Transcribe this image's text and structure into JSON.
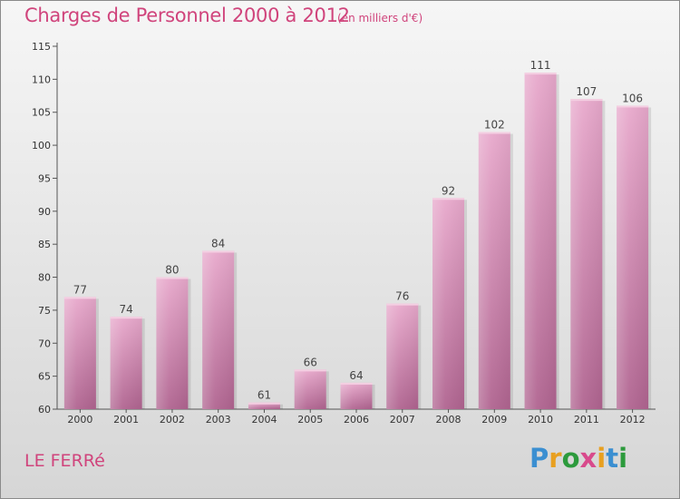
{
  "title": "Charges de Personnel 2000 à 2012",
  "subtitle": "(en milliers d'€)",
  "commune": "LE FERRé",
  "logo": {
    "text": "Proxiti",
    "letter_colors": [
      "#3b8fd1",
      "#e8a020",
      "#2c9a3c",
      "#d84a8c",
      "#e8a020",
      "#3b8fd1",
      "#2c9a3c"
    ]
  },
  "colors": {
    "title": "#d0447c",
    "bar_top": "#e8a9cc",
    "bar_bottom": "#b06490",
    "axis": "#555555"
  },
  "chart_data": {
    "type": "bar",
    "categories": [
      "2000",
      "2001",
      "2002",
      "2003",
      "2004",
      "2005",
      "2006",
      "2007",
      "2008",
      "2009",
      "2010",
      "2011",
      "2012"
    ],
    "values": [
      77,
      74,
      80,
      84,
      61,
      66,
      64,
      76,
      92,
      102,
      111,
      107,
      106
    ],
    "data_labels": [
      "77",
      "74",
      "80",
      "84",
      "61",
      "66",
      "64",
      "76",
      "92",
      "102",
      "111",
      "107",
      "106"
    ],
    "ylim": [
      60,
      115
    ],
    "yticks": [
      60,
      65,
      70,
      75,
      80,
      85,
      90,
      95,
      100,
      105,
      110,
      115
    ],
    "title": "Charges de Personnel 2000 à 2012",
    "xlabel": "",
    "ylabel": "",
    "grid": false,
    "legend": "none"
  }
}
